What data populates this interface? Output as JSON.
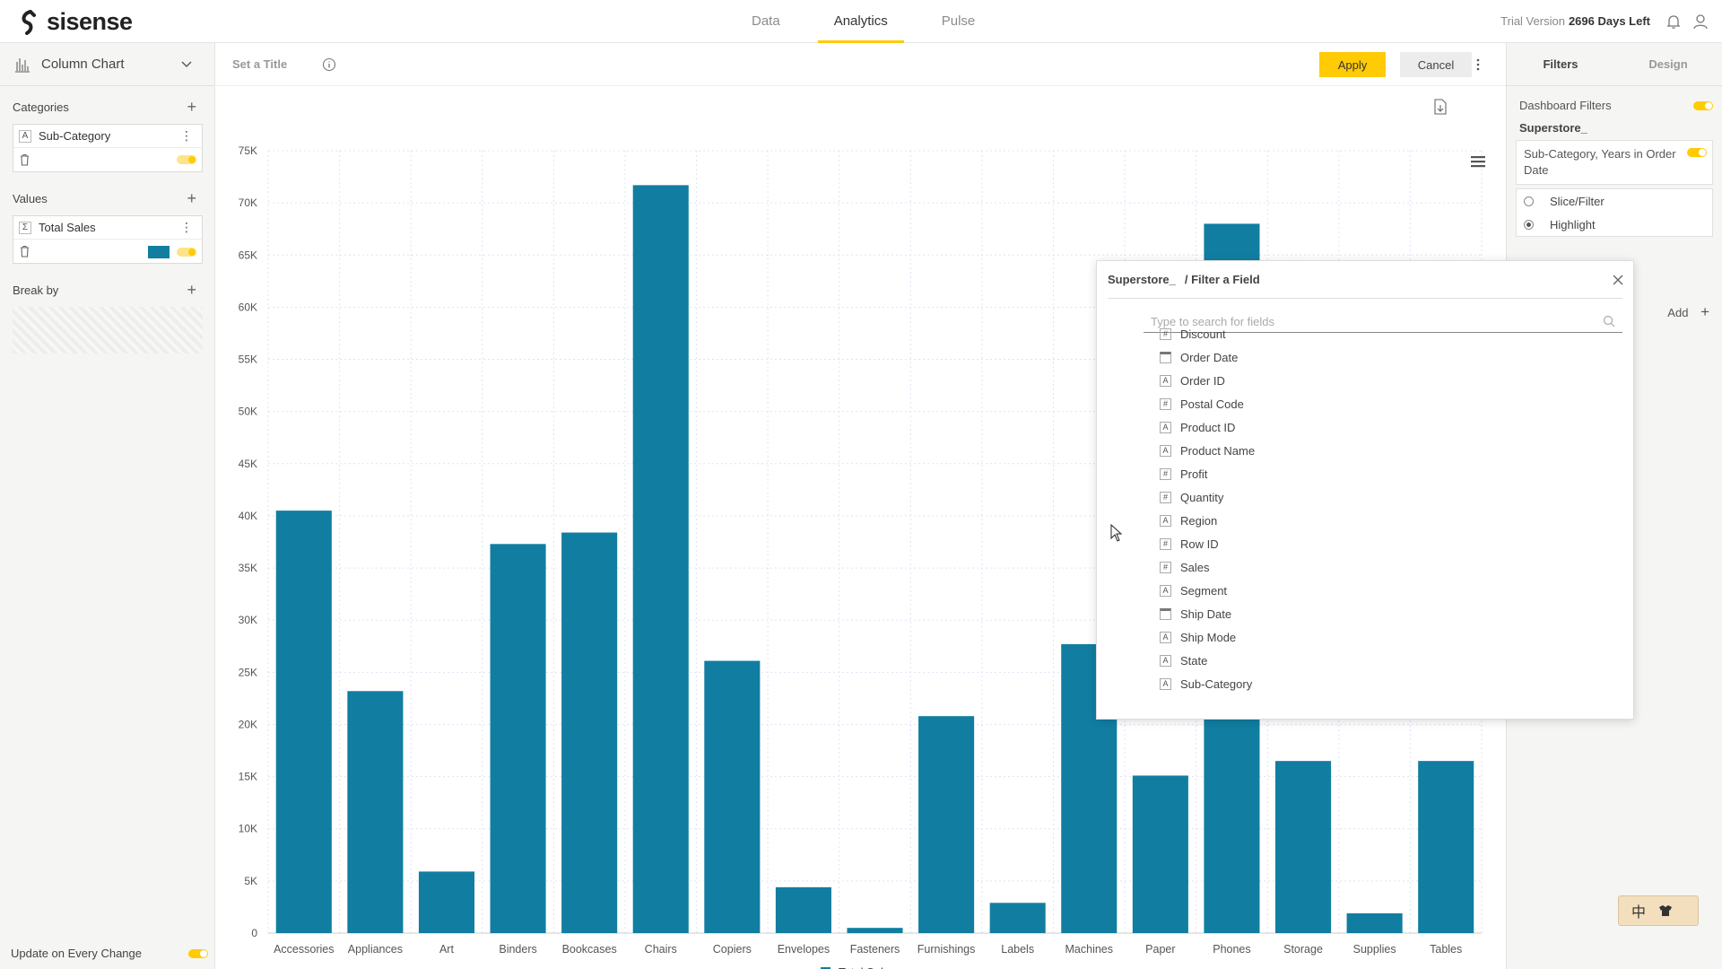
{
  "header": {
    "brand": "sisense",
    "tabs": [
      {
        "label": "Data",
        "active": false
      },
      {
        "label": "Analytics",
        "active": true
      },
      {
        "label": "Pulse",
        "active": false
      }
    ],
    "trial_label": "Trial Version",
    "trial_days": "2696 Days Left"
  },
  "left_panel": {
    "chart_type": "Column Chart",
    "categories": {
      "title": "Categories",
      "field": "Sub-Category",
      "field_type": "A"
    },
    "values": {
      "title": "Values",
      "field": "Total Sales",
      "field_type": "Σ",
      "color": "#117ea1"
    },
    "break_by": {
      "title": "Break by"
    },
    "update_label": "Update on Every Change"
  },
  "toolbar": {
    "title_placeholder": "Set a Title",
    "apply_label": "Apply",
    "cancel_label": "Cancel"
  },
  "right_panel": {
    "tabs": [
      {
        "label": "Filters",
        "active": true
      },
      {
        "label": "Design",
        "active": false
      }
    ],
    "dashboard_filters_label": "Dashboard Filters",
    "datasource": "Superstore_",
    "filter_card_text": "Sub-Category, Years in Order Date",
    "options": [
      {
        "label": "Slice/Filter",
        "selected": false
      },
      {
        "label": "Highlight",
        "selected": true
      }
    ],
    "add_label": "Add"
  },
  "dialog": {
    "datasource": "Superstore_",
    "title": "/ Filter a Field",
    "search_placeholder": "Type to search for fields",
    "fields": [
      {
        "name": "Discount",
        "type": "#"
      },
      {
        "name": "Order Date",
        "type": "date"
      },
      {
        "name": "Order ID",
        "type": "A"
      },
      {
        "name": "Postal Code",
        "type": "#"
      },
      {
        "name": "Product ID",
        "type": "A"
      },
      {
        "name": "Product Name",
        "type": "A"
      },
      {
        "name": "Profit",
        "type": "#"
      },
      {
        "name": "Quantity",
        "type": "#"
      },
      {
        "name": "Region",
        "type": "A"
      },
      {
        "name": "Row ID",
        "type": "#"
      },
      {
        "name": "Sales",
        "type": "#"
      },
      {
        "name": "Segment",
        "type": "A"
      },
      {
        "name": "Ship Date",
        "type": "date"
      },
      {
        "name": "Ship Mode",
        "type": "A"
      },
      {
        "name": "State",
        "type": "A"
      },
      {
        "name": "Sub-Category",
        "type": "A"
      }
    ]
  },
  "ime": {
    "label": "中"
  },
  "chart_data": {
    "type": "bar",
    "categories": [
      "Accessories",
      "Appliances",
      "Art",
      "Binders",
      "Bookcases",
      "Chairs",
      "Copiers",
      "Envelopes",
      "Fasteners",
      "Furnishings",
      "Labels",
      "Machines",
      "Paper",
      "Phones",
      "Storage",
      "Supplies",
      "Tables"
    ],
    "series": [
      {
        "name": "Total Sales",
        "color": "#117ea1",
        "values": [
          40500,
          23200,
          5900,
          37300,
          38400,
          71700,
          26100,
          4400,
          500,
          20800,
          2900,
          27700,
          15100,
          68000,
          16500,
          1900,
          16500
        ]
      }
    ],
    "y_ticks": [
      "0",
      "5K",
      "10K",
      "15K",
      "20K",
      "25K",
      "30K",
      "35K",
      "40K",
      "45K",
      "50K",
      "55K",
      "60K",
      "65K",
      "70K",
      "75K"
    ],
    "ylim": [
      0,
      75000
    ],
    "grid": true,
    "legend": "bottom"
  }
}
